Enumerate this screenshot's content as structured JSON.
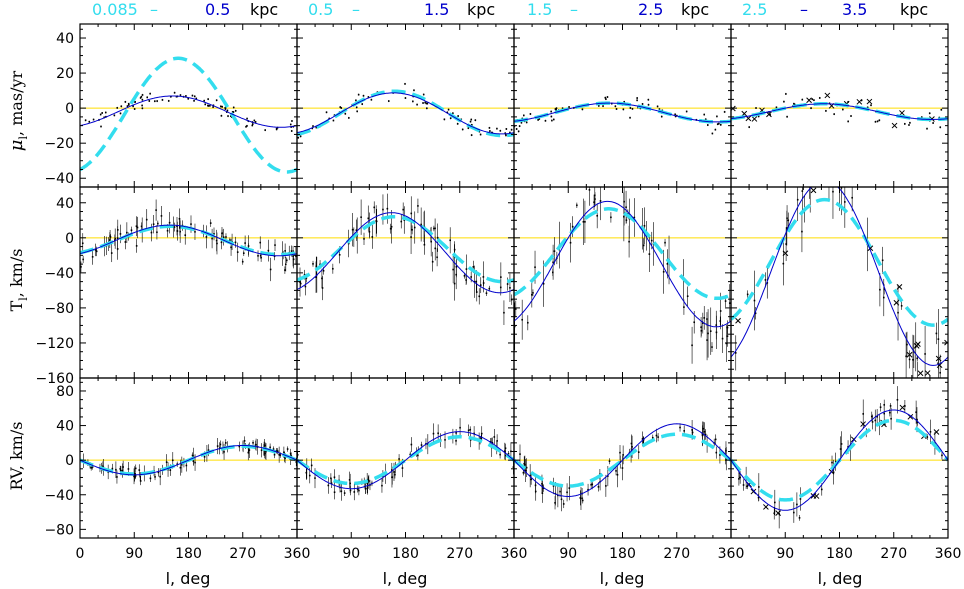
{
  "chart_data": {
    "type": "line",
    "layout": "3 rows x 4 columns",
    "colors": {
      "model_thick": "#33ddee",
      "model_thin": "#0000cc",
      "reference": "#ffdd00",
      "points": "#000000"
    },
    "legend": "none",
    "grid": false,
    "columns": [
      {
        "range_min": "0.085",
        "dash": "–",
        "range_max": "0.5",
        "unit": "kpc"
      },
      {
        "range_min": "0.5",
        "dash": "–",
        "range_max": "1.5",
        "unit": "kpc"
      },
      {
        "range_min": "1.5",
        "dash": "–",
        "range_max": "2.5",
        "unit": "kpc"
      },
      {
        "range_min": "2.5",
        "dash": "–",
        "range_max": "3.5",
        "unit": "kpc"
      }
    ],
    "xlabel": "l, deg",
    "xlim": [
      0,
      360
    ],
    "xticks": [
      0,
      90,
      180,
      270,
      360
    ],
    "rows": [
      {
        "ylabel_main": "μ",
        "ylabel_sub": "l",
        "ylabel_rest": ", mas/yr",
        "ylim": [
          -45,
          48
        ],
        "yticks": [
          40,
          20,
          0,
          -20,
          -40
        ],
        "panels": [
          {
            "thick": {
              "a": -31,
              "s": 9.5,
              "c": -4
            },
            "thin": {
              "a": -8,
              "s": 4,
              "c": -2
            }
          },
          {
            "thick": {
              "a": -12,
              "s": 4,
              "c": -3
            },
            "thin": {
              "a": -11,
              "s": 4,
              "c": -3
            }
          },
          {
            "thick": {
              "a": -5,
              "s": 2,
              "c": -2.5
            },
            "thin": {
              "a": -5,
              "s": 2,
              "c": -2.5
            }
          },
          {
            "thick": {
              "a": -4,
              "s": 2,
              "c": -2
            },
            "thin": {
              "a": -4,
              "s": 2,
              "c": -2
            }
          }
        ]
      },
      {
        "ylabel_main": "T",
        "ylabel_sub": "l",
        "ylabel_rest": ", km/s",
        "ylim": [
          -160,
          58
        ],
        "yticks": [
          40,
          0,
          -40,
          -80,
          -120,
          -160
        ],
        "panels": [
          {
            "thick": {
              "a": -14,
              "s": 8,
              "c": -3
            },
            "thin": {
              "a": -15,
              "s": 9,
              "c": -3
            }
          },
          {
            "thick": {
              "a": -35,
              "s": 12,
              "c": -13
            },
            "thin": {
              "a": -42,
              "s": 18,
              "c": -17
            }
          },
          {
            "thick": {
              "a": -47,
              "s": 20,
              "c": -18
            },
            "thin": {
              "a": -65,
              "s": 30,
              "c": -30
            }
          },
          {
            "thick": {
              "a": -65,
              "s": 30,
              "c": -28
            },
            "thin": {
              "a": -96,
              "s": 44,
              "c": -40
            }
          }
        ]
      },
      {
        "ylabel_main": "RV",
        "ylabel_sub": "",
        "ylabel_rest": ", km/s",
        "ylim": [
          -90,
          95
        ],
        "yticks": [
          80,
          40,
          0,
          -40,
          -80
        ],
        "panels": [
          {
            "thick": {
              "a": 0,
              "s": -16,
              "c": 0
            },
            "thin": {
              "a": 0,
              "s": -17,
              "c": 0
            }
          },
          {
            "thick": {
              "a": 0,
              "s": -27,
              "c": 0
            },
            "thin": {
              "a": 0,
              "s": -33,
              "c": 0
            }
          },
          {
            "thick": {
              "a": 0,
              "s": -30,
              "c": 0
            },
            "thin": {
              "a": 0,
              "s": -42,
              "c": 0
            }
          },
          {
            "thick": {
              "a": 0,
              "s": -46,
              "c": 0
            },
            "thin": {
              "a": 0,
              "s": -58,
              "c": 0
            }
          }
        ]
      }
    ]
  }
}
